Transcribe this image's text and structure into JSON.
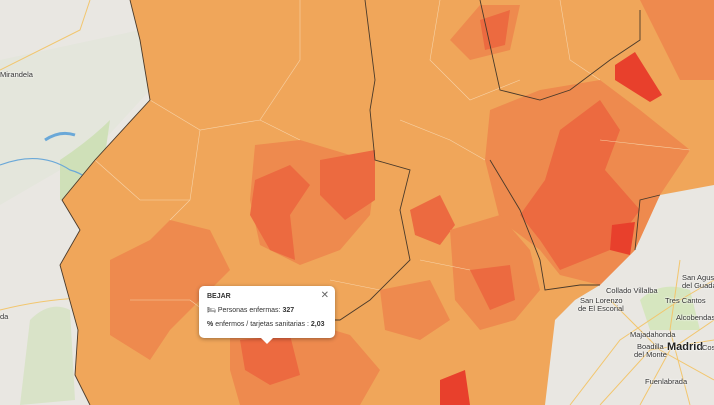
{
  "popup": {
    "title": "BEJAR",
    "close_icon": "close-icon",
    "rows": [
      {
        "icon": "bed-icon",
        "label": "Personas enfermas:",
        "value": "327"
      },
      {
        "icon": "percent-icon",
        "label": "enfermos / tarjetas sanitarias :",
        "value": "2,03"
      }
    ]
  },
  "place_labels": {
    "mirandela": "Mirandela",
    "left_cut": "da",
    "collado": "Collado Villalba",
    "escorial1": "San Lorenzo",
    "escorial2": "de El Escorial",
    "tres_cantos": "Tres Cantos",
    "san_agustin1": "San Agustín",
    "san_agustin2": "del Guadalix",
    "alcobendas": "Alcobendas",
    "majadahonda": "Majadahonda",
    "boadilla1": "Boadilla",
    "boadilla2": "del Monte",
    "madrid": "Madrid",
    "coslada": "Cosla",
    "fuenlabrada": "Fuenlabrada"
  },
  "colors": {
    "low": "#f0a65a",
    "mid": "#ee8a4e",
    "high": "#ec6a40",
    "very_high": "#e8402c",
    "base_map": "#e9e7e2"
  }
}
